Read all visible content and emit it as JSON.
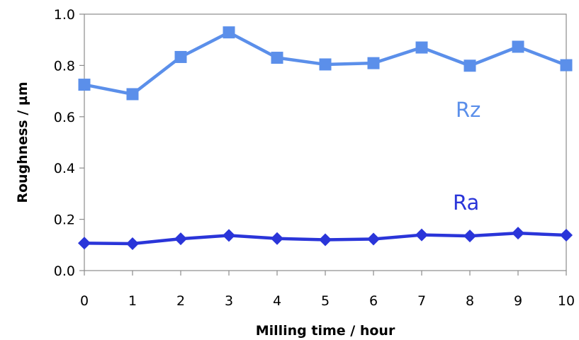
{
  "chart_data": {
    "type": "line",
    "x": [
      0,
      1,
      2,
      3,
      4,
      5,
      6,
      7,
      8,
      9,
      10
    ],
    "xlabel": "Milling time / hour",
    "ylabel": "Roughness / µm",
    "xlim": [
      0,
      10
    ],
    "ylim": [
      0,
      1.0
    ],
    "yticks": [
      "0.0",
      "0.2",
      "0.4",
      "0.6",
      "0.8",
      "1.0"
    ],
    "xticks": [
      "0",
      "1",
      "2",
      "3",
      "4",
      "5",
      "6",
      "7",
      "8",
      "9",
      "10"
    ],
    "grid": false,
    "legend": "none",
    "series": [
      {
        "name": "Rz",
        "marker": "square",
        "color": "#5B8FEA",
        "values": [
          0.725,
          0.688,
          0.833,
          0.929,
          0.83,
          0.804,
          0.809,
          0.87,
          0.799,
          0.873,
          0.801
        ]
      },
      {
        "name": "Ra",
        "marker": "diamond",
        "color": "#2A35D9",
        "values": [
          0.107,
          0.105,
          0.124,
          0.137,
          0.125,
          0.12,
          0.123,
          0.139,
          0.135,
          0.146,
          0.138
        ]
      }
    ]
  }
}
